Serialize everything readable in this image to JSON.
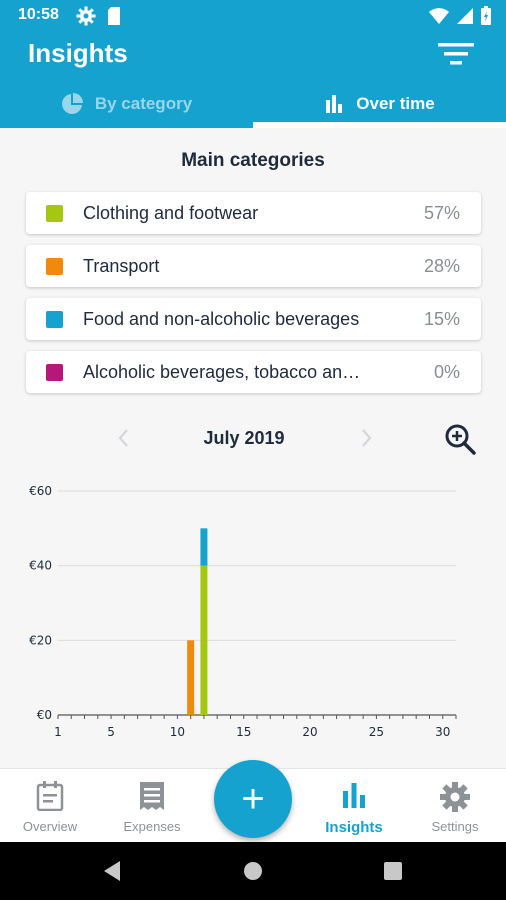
{
  "status_bar": {
    "time": "10:58"
  },
  "header": {
    "title": "Insights",
    "tabs": [
      {
        "label": "By category",
        "icon": "pie-chart-icon",
        "active": false
      },
      {
        "label": "Over time",
        "icon": "bar-chart-icon",
        "active": true
      }
    ]
  },
  "categories": {
    "title": "Main categories",
    "items": [
      {
        "label": "Clothing and footwear",
        "percent": "57%",
        "color": "#a6c712"
      },
      {
        "label": "Transport",
        "percent": "28%",
        "color": "#f08a0c"
      },
      {
        "label": "Food and non-alcoholic beverages",
        "percent": "15%",
        "color": "#16a2cf"
      },
      {
        "label": "Alcoholic beverages, tobacco an…",
        "percent": "0%",
        "color": "#b5177a"
      }
    ]
  },
  "period": {
    "label": "July 2019"
  },
  "chart_data": {
    "type": "bar",
    "stacked": true,
    "x_ticks": [
      "1",
      "5",
      "10",
      "15",
      "20",
      "25",
      "30"
    ],
    "y_ticks": [
      "€0",
      "€20",
      "€40",
      "€60"
    ],
    "xlim": [
      1,
      31
    ],
    "ylim": [
      0,
      60
    ],
    "grid": true,
    "series": [
      {
        "color": "#f08a0c",
        "points": [
          {
            "day": 11,
            "value": 20
          }
        ]
      },
      {
        "color": "#a6c712",
        "points": [
          {
            "day": 12,
            "value": 40
          }
        ]
      },
      {
        "color": "#16a2cf",
        "points": [
          {
            "day": 12,
            "value": 10
          }
        ]
      }
    ]
  },
  "bottom_nav": {
    "items": [
      {
        "label": "Overview",
        "icon": "overview-icon"
      },
      {
        "label": "Expenses",
        "icon": "expenses-icon"
      },
      {
        "label": "Insights",
        "icon": "insights-icon"
      },
      {
        "label": "Settings",
        "icon": "settings-icon"
      }
    ],
    "add_label": "+"
  },
  "colors": {
    "primary": "#16a2cf",
    "text": "#1f2a3c",
    "muted": "#8a8d93"
  }
}
